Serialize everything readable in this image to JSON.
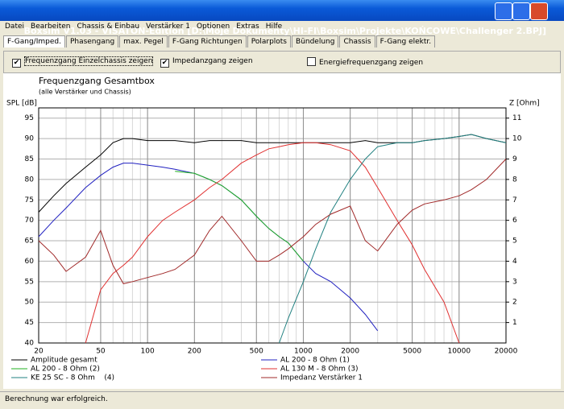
{
  "window": {
    "title": "Boxsim V1.03 - VISATON-Edition [D:\\Moje Dokumenty\\HI-FI\\Boxsim\\Projekte\\KOŃCOWE\\Challenger 2.BPJ]"
  },
  "menu": [
    "Datei",
    "Bearbeiten",
    "Chassis & Einbau",
    "Verstärker 1",
    "Optionen",
    "Extras",
    "Hilfe"
  ],
  "tabs": [
    "F-Gang/Imped.",
    "Phasengang",
    "max. Pegel",
    "F-Gang Richtungen",
    "Polarplots",
    "Bündelung",
    "Chassis",
    "F-Gang elektr."
  ],
  "options": [
    {
      "label": "Frequenzgang Einzelchassis zeigen",
      "checked": true
    },
    {
      "label": "Impedanzgang zeigen",
      "checked": true
    },
    {
      "label": "Energiefrequenzgang zeigen",
      "checked": false
    }
  ],
  "chart_data": {
    "type": "line",
    "title": "Frequenzgang Gesamtbox",
    "subtitle": "(alle Verstärker und Chassis)",
    "ylabel": "SPL [dB]",
    "y2label": "Z [Ohm]",
    "xlog": true,
    "grid": true,
    "x": [
      20,
      25,
      30,
      40,
      50,
      60,
      70,
      80,
      100,
      125,
      150,
      200,
      250,
      300,
      400,
      500,
      600,
      700,
      800,
      1000,
      1200,
      1500,
      2000,
      2500,
      3000,
      4000,
      5000,
      6000,
      8000,
      10000,
      12000,
      15000,
      20000
    ],
    "xlim": [
      20,
      20000
    ],
    "xticks": [
      20,
      50,
      100,
      200,
      500,
      1000,
      2000,
      5000,
      10000,
      20000
    ],
    "ylim": [
      40,
      97.5
    ],
    "yticks": [
      40,
      45,
      50,
      55,
      60,
      65,
      70,
      75,
      80,
      85,
      90,
      95
    ],
    "y2lim": [
      0,
      11.5
    ],
    "y2ticks": [
      1,
      2,
      3,
      4,
      5,
      6,
      7,
      8,
      9,
      10,
      11
    ],
    "series": [
      {
        "name": "Amplitude gesamt",
        "color": "#000000",
        "values": [
          72,
          76,
          79,
          83,
          86,
          89,
          90,
          90,
          89.5,
          89.5,
          89.5,
          89,
          89.5,
          89.5,
          89.5,
          89,
          89,
          89,
          89,
          89,
          89,
          89,
          89,
          89.5,
          89,
          89,
          89,
          89.5,
          90,
          90.5,
          91,
          90,
          89
        ]
      },
      {
        "name": "AL 200 - 8 Ohm (1)",
        "color": "#2020c0",
        "values": [
          66,
          70,
          73,
          78,
          81,
          83,
          84,
          84,
          83.5,
          83,
          82.5,
          81.5,
          80,
          78.5,
          75,
          71,
          68,
          66,
          64.5,
          60,
          57,
          55,
          51,
          47,
          43,
          null,
          null,
          null,
          null,
          null,
          null,
          null,
          null
        ]
      },
      {
        "name": "AL 200 - 8 Ohm (2)",
        "color": "#20b020",
        "values": [
          null,
          null,
          null,
          null,
          null,
          null,
          null,
          null,
          null,
          null,
          82,
          81.5,
          80,
          78.5,
          75,
          71,
          68,
          66,
          64.5,
          60,
          null,
          null,
          null,
          null,
          null,
          null,
          null,
          null,
          null,
          null,
          null,
          null,
          null
        ]
      },
      {
        "name": "AL 130 M - 8 Ohm (3)",
        "color": "#e03030",
        "values": [
          null,
          null,
          null,
          40,
          53,
          57,
          59,
          61,
          66,
          70,
          72,
          75,
          78,
          80,
          84,
          86,
          87.5,
          88,
          88.5,
          89,
          89,
          88.5,
          87,
          83,
          78,
          70,
          64,
          58,
          50,
          40,
          null,
          null,
          null
        ]
      },
      {
        "name": "KE 25 SC - 8 Ohm    (4)",
        "color": "#208080",
        "values": [
          null,
          null,
          null,
          null,
          null,
          null,
          null,
          40,
          null,
          null,
          null,
          null,
          null,
          null,
          null,
          null,
          null,
          40,
          46,
          55,
          63,
          72,
          80,
          85,
          88,
          89,
          89,
          89.5,
          90,
          90.5,
          91,
          90,
          89
        ]
      },
      {
        "name": "Impedanz Verstärker 1",
        "color": "#a02828",
        "axis": "y2",
        "values": [
          5,
          4.3,
          3.5,
          4.2,
          5.5,
          3.8,
          2.9,
          3,
          3.2,
          3.4,
          3.6,
          4.3,
          5.5,
          6.2,
          5,
          4,
          4,
          4.3,
          4.6,
          5.2,
          5.8,
          6.3,
          6.7,
          5,
          4.5,
          5.8,
          6.5,
          6.8,
          7,
          7.2,
          7.5,
          8,
          9
        ]
      }
    ]
  },
  "status": "Berechnung war erfolgreich."
}
